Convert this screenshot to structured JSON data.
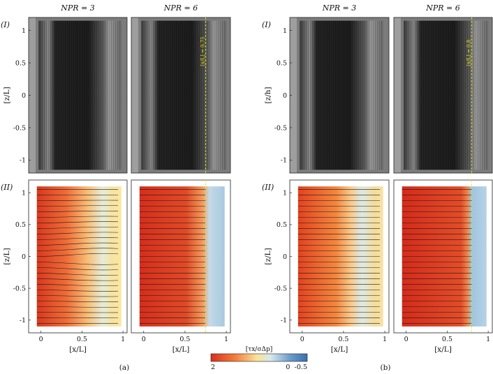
{
  "chart_data": {
    "type": "heatmap",
    "description_none": "",
    "groups": [
      {
        "id": "a",
        "label": "(a)",
        "ylabel_top": "[z/L]",
        "ylabel_bottom": "[z/L]",
        "xlabel": "[x/L]",
        "panels": [
          {
            "title": "NPR = 3",
            "shock": null,
            "shock_label": ""
          },
          {
            "title": "NPR = 6",
            "shock": 0.75,
            "shock_label": "[x/L] = 0.75"
          }
        ]
      },
      {
        "id": "b",
        "label": "(b)",
        "ylabel_top": "[z/h]",
        "ylabel_bottom": "[z/L]",
        "xlabel": "[x/L]",
        "panels": [
          {
            "title": "NPR = 3",
            "shock": null,
            "shock_label": ""
          },
          {
            "title": "NPR = 6",
            "shock": 0.8,
            "shock_label": "[x/L] = 0.8"
          }
        ]
      }
    ],
    "row_labels": [
      "(I)",
      "(II)"
    ],
    "ylim": [
      -1.2,
      1.2
    ],
    "xlim": [
      -0.15,
      1.05
    ],
    "yticks": [
      1,
      0.5,
      0,
      -0.5,
      -1
    ],
    "ytick_labels": [
      "1",
      "0.5",
      "0",
      "-0.5",
      "-1"
    ],
    "xticks": [
      0,
      0.5,
      1
    ],
    "xtick_labels": [
      "0",
      "0.5",
      "1"
    ],
    "colorbar": {
      "label": "[τx/σΔp]",
      "min": 2,
      "max": -0.5,
      "tick_labels": [
        "2",
        "0",
        "-0.5"
      ],
      "tick_values": [
        2,
        0,
        -0.5
      ],
      "colors": [
        "#d7301f",
        "#f47c3c",
        "#fbe39a",
        "#d6e8ea",
        "#6a9ccb",
        "#3a6fae"
      ]
    }
  }
}
